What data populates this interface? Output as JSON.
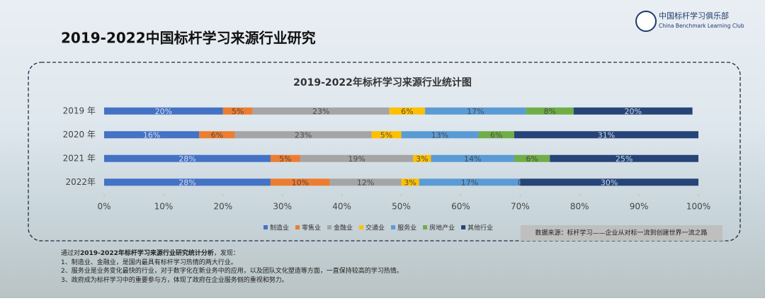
{
  "header": {
    "title": "2019-2022中国标杆学习来源行业研究",
    "logo_name": "中国标杆学习俱乐部",
    "logo_subtitle": "China Benchmark Learning Club"
  },
  "chart_data": {
    "type": "bar",
    "orientation": "horizontal",
    "stacked": true,
    "title": "2019-2022年标杆学习来源行业统计图",
    "categories": [
      "2019 年",
      "2020 年",
      "2021 年",
      "2022年"
    ],
    "series": [
      {
        "name": "制造业",
        "color": "#4472c4",
        "values": [
          20,
          16,
          28,
          28
        ],
        "value_labels": [
          "20%",
          "16%",
          "28%",
          "28%"
        ]
      },
      {
        "name": "零售业",
        "color": "#ed7d31",
        "values": [
          5,
          6,
          5,
          10
        ],
        "value_labels": [
          "5%",
          "6%",
          "5%",
          "10%"
        ]
      },
      {
        "name": "金融业",
        "color": "#a5a5a5",
        "values": [
          23,
          23,
          19,
          12
        ],
        "value_labels": [
          "23%",
          "23%",
          "19%",
          "12%"
        ]
      },
      {
        "name": "交通业",
        "color": "#ffc000",
        "values": [
          6,
          5,
          3,
          3
        ],
        "value_labels": [
          "6%",
          "5%",
          "3%",
          "3%"
        ]
      },
      {
        "name": "服务业",
        "color": "#5b9bd5",
        "values": [
          17,
          13,
          14,
          17
        ],
        "value_labels": [
          "17%",
          "13%",
          "14%",
          "17%"
        ]
      },
      {
        "name": "房地产业",
        "color": "#70ad47",
        "values": [
          8,
          6,
          6,
          0
        ],
        "value_labels": [
          "8%",
          "6%",
          "6%",
          "0"
        ]
      },
      {
        "name": "其他行业",
        "color": "#264478",
        "values": [
          20,
          31,
          25,
          30
        ],
        "value_labels": [
          "20%",
          "31%",
          "25%",
          "30%"
        ]
      }
    ],
    "xlim": [
      0,
      100
    ],
    "xticks": [
      {
        "value": 0,
        "label": "0%"
      },
      {
        "value": 10,
        "label": "10%"
      },
      {
        "value": 20,
        "label": "20%"
      },
      {
        "value": 30,
        "label": "30%"
      },
      {
        "value": 40,
        "label": "40%"
      },
      {
        "value": 50,
        "label": "50%"
      },
      {
        "value": 60,
        "label": "60%"
      },
      {
        "value": 70,
        "label": "70%"
      },
      {
        "value": 80,
        "label": "80%"
      },
      {
        "value": 90,
        "label": "90%"
      },
      {
        "value": 100,
        "label": "100%"
      }
    ],
    "legend": "bottom",
    "source": "数据来源：标杆学习——企业从对标一流到创建世界一流之路"
  },
  "notes": {
    "intro_prefix": "通过对",
    "intro_bold": "2019-2022年标杆学习来源行业研究统计分析",
    "intro_suffix": "，发现：",
    "items": [
      "1、制造业、金融业，是国内最具有标杆学习热情的两大行业。",
      "2、服务业是业务变化最快的行业，对于数字化在新业务中的应用，以及团队文化塑造等方面，一直保持较高的学习热情。",
      "3、政府成为标杆学习中的重要参与方，体现了政府在企业服务侧的重视和努力。"
    ]
  }
}
